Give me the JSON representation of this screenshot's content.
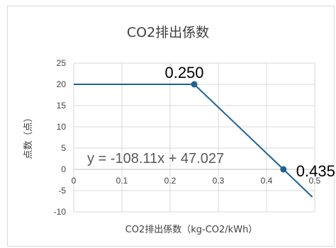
{
  "chart_data": {
    "type": "line",
    "title": "CO2排出係数",
    "xlabel": "CO2排出係数（kg-CO2/kWh）",
    "ylabel": "点数（点）",
    "xlim": [
      0,
      0.5
    ],
    "ylim": [
      -10,
      25
    ],
    "x_ticks": [
      "0",
      "0.1",
      "0.2",
      "0.3",
      "0.4",
      "0.5"
    ],
    "y_ticks": [
      "25",
      "20",
      "15",
      "10",
      "5",
      "0",
      "-5",
      "-10"
    ],
    "grid": true,
    "color": "#1f6391",
    "series": [
      {
        "x": [
          0.0,
          0.25,
          0.435,
          0.495
        ],
        "y": [
          20,
          20,
          0,
          -6.5
        ]
      }
    ],
    "markers": [
      {
        "x": 0.25,
        "y": 20,
        "label": "0.250"
      },
      {
        "x": 0.435,
        "y": 0,
        "label": "0.435"
      }
    ],
    "trendline_equation": "y = -108.11x + 47.027"
  }
}
